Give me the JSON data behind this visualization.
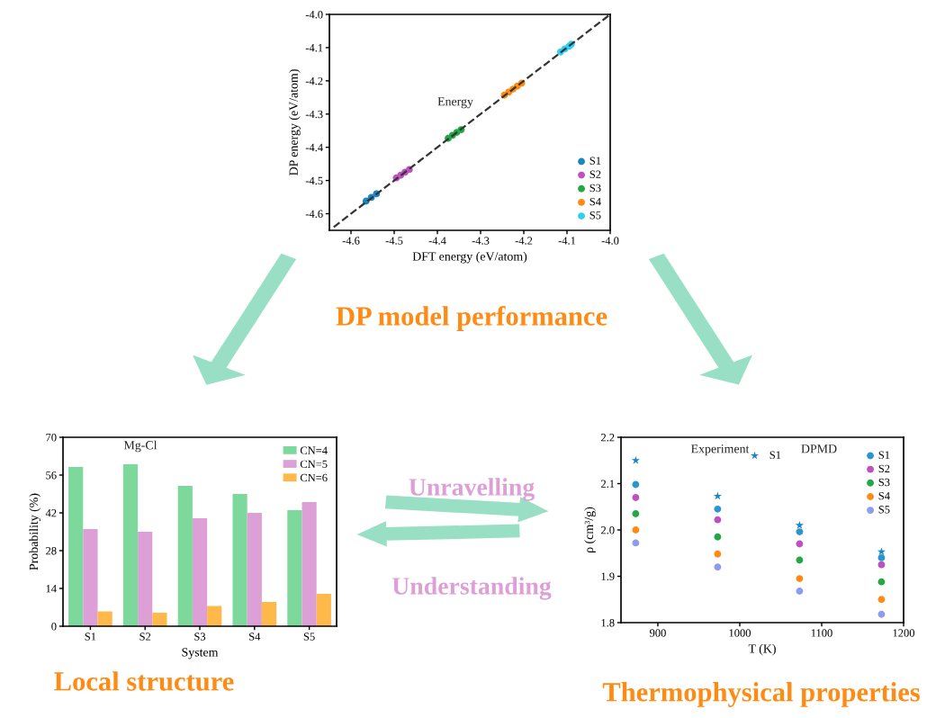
{
  "chart_data": [
    {
      "type": "scatter",
      "xlabel": "DFT energy (eV/atom)",
      "ylabel": "DP energy (eV/atom)",
      "xlim": [
        -4.65,
        -4.0
      ],
      "ylim": [
        -4.65,
        -4.0
      ],
      "xticks": [
        -4.6,
        -4.5,
        -4.4,
        -4.3,
        -4.2,
        -4.1,
        {
          "value": -4.0,
          "label": "-4.0"
        }
      ],
      "yticks": [
        -4.6,
        -4.5,
        -4.4,
        -4.3,
        -4.2,
        -4.1,
        {
          "value": -4.0,
          "label": "-4.0"
        }
      ],
      "legend": "bottom right",
      "marker": "circle",
      "annotations": [
        "Energy",
        "DP model performance"
      ],
      "series": [
        {
          "type": "line",
          "color": "#333333",
          "line_style": "dashed",
          "marker": "none",
          "x": [
            -4.64,
            -4.0
          ],
          "values": [
            -4.64,
            -4.0
          ]
        },
        {
          "name": "S1",
          "color": "#1a86c0",
          "x": [
            -4.565,
            -4.553,
            -4.541
          ],
          "values": [
            -4.562,
            -4.551,
            -4.54
          ]
        },
        {
          "name": "S2",
          "color": "#c050c0",
          "x": [
            -4.495,
            -4.485,
            -4.475,
            -4.465
          ],
          "values": [
            -4.492,
            -4.484,
            -4.475,
            -4.467
          ]
        },
        {
          "name": "S3",
          "color": "#22a844",
          "x": [
            -4.375,
            -4.365,
            -4.355,
            -4.345
          ],
          "values": [
            -4.373,
            -4.364,
            -4.355,
            -4.347
          ]
        },
        {
          "name": "S4",
          "color": "#ff8a14",
          "x": [
            -4.245,
            -4.235,
            -4.225,
            -4.215,
            -4.205
          ],
          "values": [
            -4.243,
            -4.234,
            -4.225,
            -4.216,
            -4.207
          ]
        },
        {
          "name": "S5",
          "color": "#2ed0f2",
          "x": [
            -4.115,
            -4.105,
            -4.095,
            -4.09
          ],
          "values": [
            -4.113,
            -4.104,
            -4.096,
            -4.09
          ]
        }
      ]
    },
    {
      "type": "bar",
      "xlabel": "System",
      "ylabel": "Probability (%)",
      "categories": [
        "S1",
        "S2",
        "S3",
        "S4",
        "S5"
      ],
      "ylim": [
        0,
        70
      ],
      "yticks": [
        0,
        14,
        28,
        42,
        56,
        70
      ],
      "legend": "top right",
      "annotations": [
        "Mg-Cl",
        "Local structure",
        "Unravelling",
        "Understanding"
      ],
      "series": [
        {
          "name": "CN=4",
          "color": "#7dd89c",
          "values": [
            59,
            60,
            52,
            49,
            43
          ]
        },
        {
          "name": "CN=5",
          "color": "#dca0d6",
          "values": [
            36,
            35,
            40,
            42,
            46
          ]
        },
        {
          "name": "CN=6",
          "color": "#ffb84a",
          "values": [
            5.5,
            5,
            7.5,
            9,
            12
          ]
        }
      ]
    },
    {
      "type": "scatter",
      "xlabel": "T (K)",
      "ylabel": "ρ (cm³/g)",
      "xlim": [
        855,
        1200
      ],
      "ylim": [
        1.8,
        2.2
      ],
      "xticks": [
        900,
        1000,
        1100,
        1200
      ],
      "yticks": [
        1.8,
        1.9,
        {
          "value": 2.0,
          "label": "2.0"
        },
        2.1,
        2.2
      ],
      "legend": "top right",
      "marker": "circle",
      "annotations": [
        "Experiment",
        "DPMD",
        "Thermophysical properties"
      ],
      "series": [
        {
          "name": "S1",
          "color": "#1a86c0",
          "marker": "star",
          "x": [
            873,
            973,
            1073,
            1173
          ],
          "values": [
            2.15,
            2.073,
            2.01,
            1.953
          ]
        },
        {
          "name": "S1",
          "color": "#2a96d0",
          "x": [
            873,
            973,
            1073,
            1173
          ],
          "values": [
            2.098,
            2.045,
            1.996,
            1.94
          ]
        },
        {
          "name": "S2",
          "color": "#c050c0",
          "x": [
            873,
            973,
            1073,
            1173
          ],
          "values": [
            2.07,
            2.022,
            1.97,
            1.925
          ]
        },
        {
          "name": "S3",
          "color": "#22a844",
          "x": [
            873,
            973,
            1073,
            1173
          ],
          "values": [
            2.035,
            1.985,
            1.935,
            1.888
          ]
        },
        {
          "name": "S4",
          "color": "#ff8a14",
          "x": [
            873,
            973,
            1073,
            1173
          ],
          "values": [
            2.0,
            1.948,
            1.895,
            1.85
          ]
        },
        {
          "name": "S5",
          "color": "#8c9cf2",
          "x": [
            873,
            973,
            1073,
            1173
          ],
          "values": [
            1.972,
            1.92,
            1.868,
            1.818
          ]
        }
      ]
    }
  ]
}
